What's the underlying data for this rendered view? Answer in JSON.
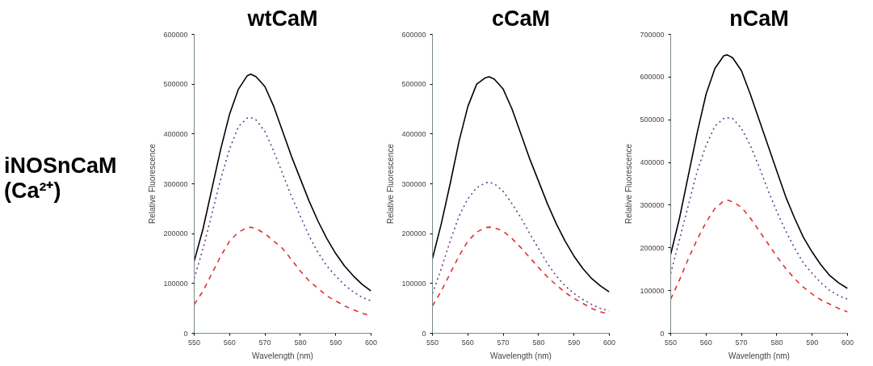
{
  "chart_data": [
    {
      "type": "line",
      "title": "wtCaM",
      "xlabel": "Wavelength (nm)",
      "ylabel": "Relative Fluorescence",
      "annotations": [
        "iNOSnCaM (Ca²⁺)"
      ],
      "x": [
        550,
        552.5,
        555,
        557.5,
        560,
        562.5,
        565,
        566,
        567.5,
        570,
        572.5,
        575,
        577.5,
        580,
        582.5,
        585,
        587.5,
        590,
        592.5,
        595,
        597.5,
        600
      ],
      "xlim": [
        550,
        600
      ],
      "xticks": [
        550,
        560,
        570,
        580,
        590,
        600
      ],
      "ylim": [
        0,
        600000
      ],
      "yticks": [
        0,
        100000,
        200000,
        300000,
        400000,
        500000,
        600000
      ],
      "grid": false,
      "series": [
        {
          "color": "#000000",
          "line_style": "solid",
          "values": [
            145000,
            210000,
            290000,
            370000,
            440000,
            490000,
            517000,
            520000,
            515000,
            495000,
            455000,
            405000,
            355000,
            310000,
            265000,
            225000,
            190000,
            160000,
            135000,
            115000,
            98000,
            85000
          ]
        },
        {
          "color": "#6a3d8f",
          "line_style": "dotted",
          "values": [
            110000,
            170000,
            240000,
            310000,
            370000,
            415000,
            432000,
            433000,
            428000,
            405000,
            365000,
            320000,
            275000,
            235000,
            195000,
            162000,
            135000,
            115000,
            97000,
            83000,
            72000,
            65000
          ]
        },
        {
          "color": "#e03030",
          "line_style": "dashed",
          "values": [
            58000,
            85000,
            120000,
            155000,
            185000,
            203000,
            212000,
            213000,
            210000,
            200000,
            185000,
            170000,
            148000,
            125000,
            105000,
            90000,
            75000,
            65000,
            55000,
            47000,
            40000,
            35000
          ]
        }
      ]
    },
    {
      "type": "line",
      "title": "cCaM",
      "xlabel": "Wavelength (nm)",
      "ylabel": "Relative Fluorescence",
      "x": [
        550,
        552.5,
        555,
        557.5,
        560,
        562.5,
        565,
        566,
        567.5,
        570,
        572.5,
        575,
        577.5,
        580,
        582.5,
        585,
        587.5,
        590,
        592.5,
        595,
        597.5,
        600
      ],
      "xlim": [
        550,
        600
      ],
      "xticks": [
        550,
        560,
        570,
        580,
        590,
        600
      ],
      "ylim": [
        0,
        600000
      ],
      "yticks": [
        0,
        100000,
        200000,
        300000,
        400000,
        500000,
        600000
      ],
      "grid": false,
      "series": [
        {
          "color": "#000000",
          "line_style": "solid",
          "values": [
            150000,
            220000,
            300000,
            385000,
            455000,
            500000,
            513000,
            515000,
            510000,
            490000,
            450000,
            400000,
            350000,
            305000,
            260000,
            220000,
            185000,
            155000,
            130000,
            110000,
            95000,
            83000
          ]
        },
        {
          "color": "#6a3d8f",
          "line_style": "dotted",
          "values": [
            80000,
            130000,
            185000,
            235000,
            270000,
            292000,
            302000,
            303000,
            300000,
            285000,
            260000,
            232000,
            200000,
            170000,
            140000,
            115000,
            95000,
            80000,
            68000,
            58000,
            50000,
            45000
          ]
        },
        {
          "color": "#e03030",
          "line_style": "dashed",
          "values": [
            55000,
            85000,
            120000,
            155000,
            185000,
            203000,
            212000,
            213000,
            212000,
            205000,
            190000,
            172000,
            152000,
            132000,
            113000,
            97000,
            82000,
            70000,
            60000,
            50000,
            43000,
            38000
          ]
        }
      ]
    },
    {
      "type": "line",
      "title": "nCaM",
      "xlabel": "Wavelength (nm)",
      "ylabel": "Relative Fluorescence",
      "x": [
        550,
        552.5,
        555,
        557.5,
        560,
        562.5,
        565,
        566,
        567.5,
        570,
        572.5,
        575,
        577.5,
        580,
        582.5,
        585,
        587.5,
        590,
        592.5,
        595,
        597.5,
        600
      ],
      "xlim": [
        550,
        600
      ],
      "xticks": [
        550,
        560,
        570,
        580,
        590,
        600
      ],
      "ylim": [
        0,
        700000
      ],
      "yticks": [
        0,
        100000,
        200000,
        300000,
        400000,
        500000,
        600000,
        700000
      ],
      "grid": false,
      "series": [
        {
          "color": "#000000",
          "line_style": "solid",
          "values": [
            185000,
            270000,
            370000,
            470000,
            560000,
            620000,
            650000,
            652000,
            645000,
            615000,
            560000,
            500000,
            440000,
            380000,
            320000,
            270000,
            225000,
            190000,
            160000,
            135000,
            118000,
            105000
          ]
        },
        {
          "color": "#6a3d8f",
          "line_style": "dotted",
          "values": [
            140000,
            220000,
            300000,
            380000,
            440000,
            485000,
            503000,
            505000,
            503000,
            480000,
            440000,
            390000,
            335000,
            285000,
            240000,
            200000,
            165000,
            140000,
            118000,
            100000,
            88000,
            80000
          ]
        },
        {
          "color": "#e03030",
          "line_style": "dashed",
          "values": [
            80000,
            125000,
            175000,
            220000,
            260000,
            292000,
            310000,
            312000,
            308000,
            295000,
            270000,
            240000,
            210000,
            180000,
            152000,
            128000,
            108000,
            92000,
            78000,
            68000,
            58000,
            50000
          ]
        }
      ]
    }
  ]
}
